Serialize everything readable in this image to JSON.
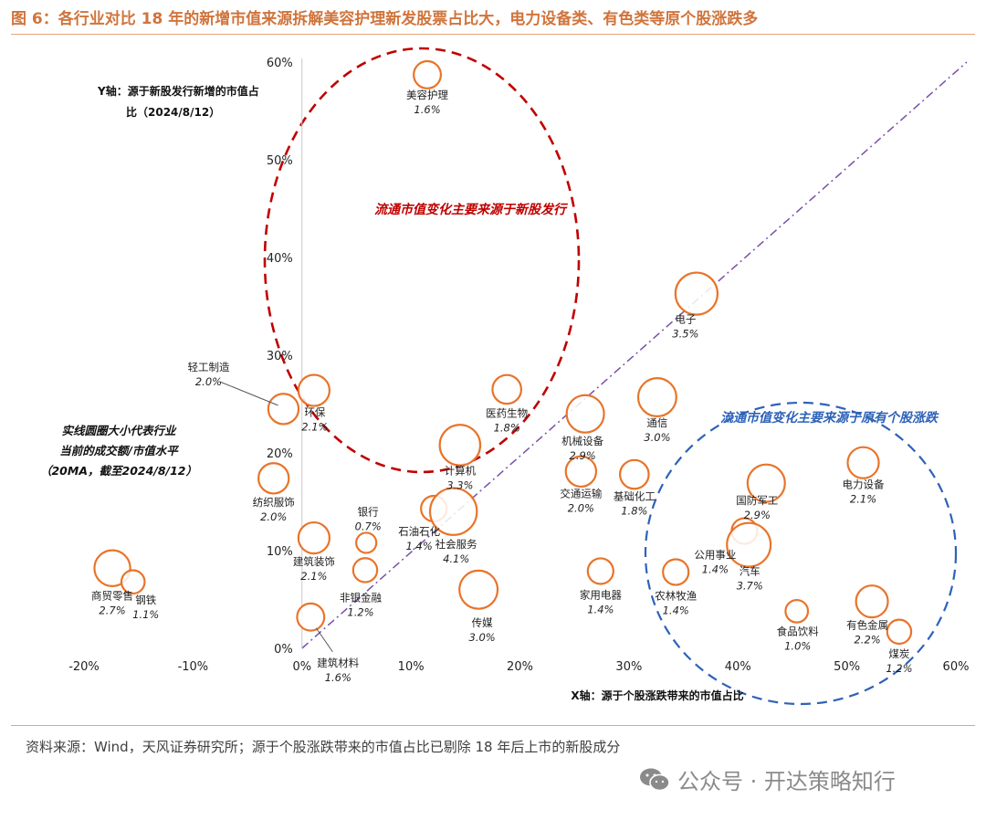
{
  "title": "图 6：各行业对比 18 年的新增市值来源拆解美容护理新发股票占比大，电力设备类、有色类等原个股涨跌多",
  "source": "资料来源：Wind，天风证券研究所；源于个股涨跌带来的市值占比已剔除 18 年后上市的新股成分",
  "watermark": {
    "text": "公众号 · 开达策略知行",
    "icon": "wechat-icon"
  },
  "colors": {
    "title": "#d0743c",
    "bubble": "#e8742a",
    "red_circle": "#c00000",
    "blue_circle": "#2e62b8",
    "diagonal": "#7b4fa8"
  },
  "chart_data": {
    "type": "scatter",
    "x_tick_labels": [
      "-20%",
      "-10%",
      "0%",
      "10%",
      "20%",
      "30%",
      "40%",
      "50%",
      "60%"
    ],
    "y_tick_labels": [
      "0%",
      "10%",
      "20%",
      "30%",
      "40%",
      "50%",
      "60%"
    ],
    "xlim": [
      -20,
      60
    ],
    "ylim": [
      0,
      60
    ],
    "xlabel": "X轴：源于个股涨跌带来的市值占比",
    "ylabel_lines": [
      "Y轴：源于新股发行新增的市值占",
      "比（2024/8/12）"
    ],
    "size_note_lines": [
      "实线圆圈大小代表行业",
      "当前的成交额/市值水平",
      "（20MA，截至2024/8/12）"
    ],
    "diagonal_line": {
      "from": [
        0,
        0
      ],
      "to": [
        61,
        60
      ]
    },
    "red_ellipse_label": "流通市值变化主要来源于新股发行",
    "blue_ellipse_label": "流通市值变化主要来源于原有个股涨跌",
    "points": [
      {
        "name": "美容护理",
        "value": "1.6%",
        "x": 11.5,
        "y": 58.7,
        "size": 1.6
      },
      {
        "name": "电子",
        "value": "3.5%",
        "x": 36.2,
        "y": 36.3,
        "size": 3.5
      },
      {
        "name": "轻工制造",
        "value": "2.0%",
        "x": -1.7,
        "y": 24.5,
        "size": 2.0
      },
      {
        "name": "环保",
        "value": "2.1%",
        "x": 1.1,
        "y": 26.4,
        "size": 2.1
      },
      {
        "name": "医药生物",
        "value": "1.8%",
        "x": 18.8,
        "y": 26.5,
        "size": 1.8
      },
      {
        "name": "通信",
        "value": "3.0%",
        "x": 32.6,
        "y": 25.7,
        "size": 3.0
      },
      {
        "name": "机械设备",
        "value": "2.9%",
        "x": 26.0,
        "y": 24.0,
        "size": 2.9
      },
      {
        "name": "计算机",
        "value": "3.3%",
        "x": 14.5,
        "y": 20.8,
        "size": 3.3
      },
      {
        "name": "电力设备",
        "value": "2.1%",
        "x": 51.5,
        "y": 19.0,
        "size": 2.1
      },
      {
        "name": "纺织服饰",
        "value": "2.0%",
        "x": -2.6,
        "y": 17.4,
        "size": 2.0
      },
      {
        "name": "交通运输",
        "value": "2.0%",
        "x": 25.6,
        "y": 18.1,
        "size": 2.0
      },
      {
        "name": "基础化工",
        "value": "1.8%",
        "x": 30.5,
        "y": 17.8,
        "size": 1.8
      },
      {
        "name": "国防军工",
        "value": "2.9%",
        "x": 42.6,
        "y": 16.9,
        "size": 2.9
      },
      {
        "name": "石油石化",
        "value": "1.4%",
        "x": 12.1,
        "y": 14.3,
        "size": 1.4
      },
      {
        "name": "社会服务",
        "value": "4.1%",
        "x": 13.9,
        "y": 14.0,
        "size": 4.1
      },
      {
        "name": "公用事业",
        "value": "1.4%",
        "x": 40.6,
        "y": 12.0,
        "size": 1.4
      },
      {
        "name": "汽车",
        "value": "3.7%",
        "x": 41.0,
        "y": 10.6,
        "size": 3.7
      },
      {
        "name": "建筑装饰",
        "value": "2.1%",
        "x": 1.1,
        "y": 11.3,
        "size": 2.1
      },
      {
        "name": "银行",
        "value": "0.7%",
        "x": 5.9,
        "y": 10.8,
        "size": 0.7
      },
      {
        "name": "非银金融",
        "value": "1.2%",
        "x": 5.8,
        "y": 8.0,
        "size": 1.2
      },
      {
        "name": "商贸零售",
        "value": "2.7%",
        "x": -17.4,
        "y": 8.2,
        "size": 2.7
      },
      {
        "name": "钢铁",
        "value": "1.1%",
        "x": -15.5,
        "y": 6.8,
        "size": 1.1
      },
      {
        "name": "家用电器",
        "value": "1.4%",
        "x": 27.4,
        "y": 7.9,
        "size": 1.4
      },
      {
        "name": "农林牧渔",
        "value": "1.4%",
        "x": 34.3,
        "y": 7.8,
        "size": 1.4
      },
      {
        "name": "传媒",
        "value": "3.0%",
        "x": 16.2,
        "y": 6.0,
        "size": 3.0
      },
      {
        "name": "有色金属",
        "value": "2.2%",
        "x": 52.3,
        "y": 4.8,
        "size": 2.2
      },
      {
        "name": "食品饮料",
        "value": "1.0%",
        "x": 45.4,
        "y": 3.8,
        "size": 1.0
      },
      {
        "name": "煤炭",
        "value": "1.2%",
        "x": 54.8,
        "y": 1.7,
        "size": 1.2
      },
      {
        "name": "建筑材料",
        "value": "1.6%",
        "x": 0.8,
        "y": 3.2,
        "size": 1.6
      }
    ]
  }
}
